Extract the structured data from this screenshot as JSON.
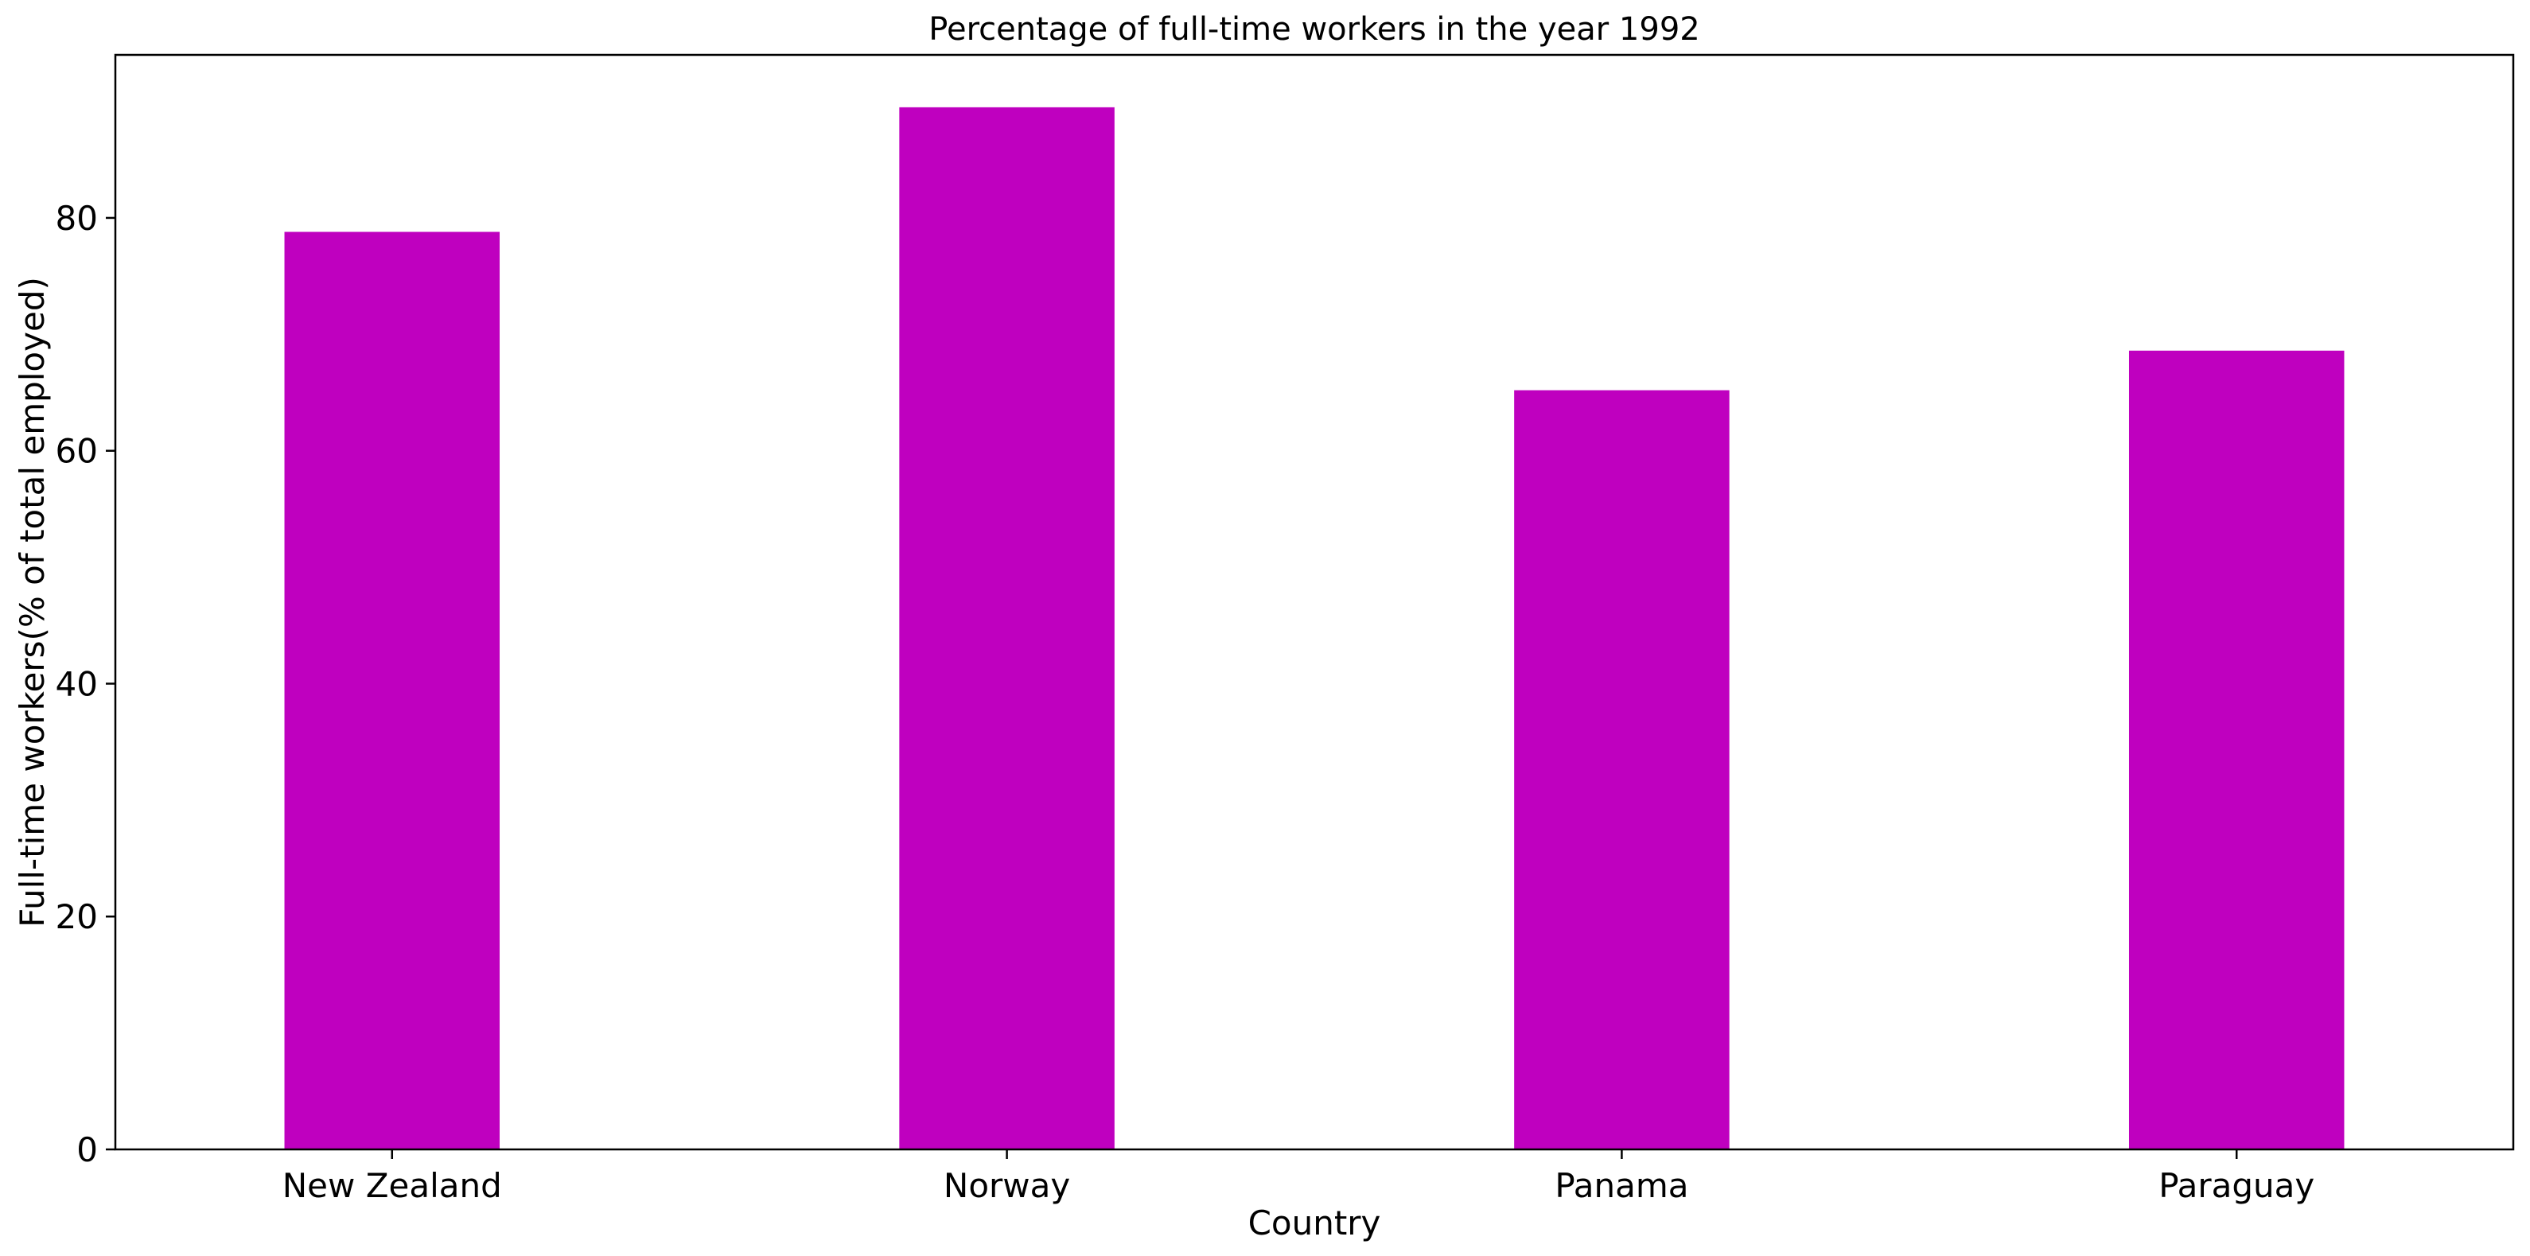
{
  "chart_data": {
    "type": "bar",
    "title": "Percentage of full-time workers in the year 1992",
    "xlabel": "Country",
    "ylabel": "Full-time workers(% of total employed)",
    "categories": [
      "New Zealand",
      "Norway",
      "Panama",
      "Paraguay"
    ],
    "values": [
      78.8,
      89.5,
      65.2,
      68.6
    ],
    "ylim": [
      0,
      94
    ],
    "yticks": [
      0,
      20,
      40,
      60,
      80
    ],
    "bar_color": "#bf00bf",
    "grid": false,
    "legend": "none"
  }
}
